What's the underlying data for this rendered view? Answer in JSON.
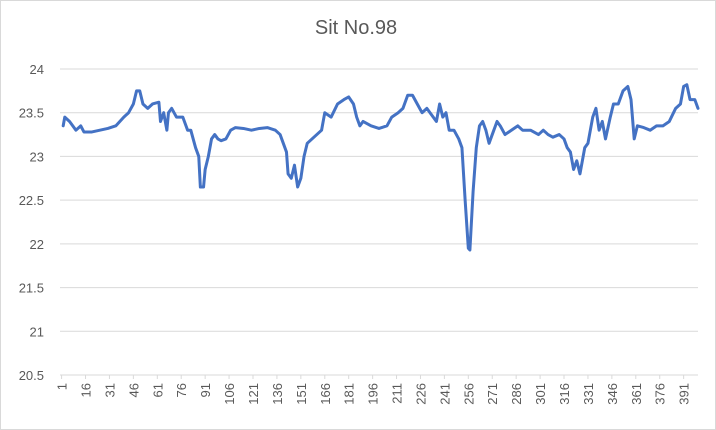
{
  "chart_data": {
    "type": "line",
    "title": "Sit No.98",
    "x": [
      2,
      3,
      6,
      10,
      13,
      15,
      20,
      25,
      30,
      35,
      40,
      43,
      46,
      48,
      50,
      52,
      55,
      58,
      62,
      63,
      65,
      67,
      68,
      70,
      73,
      77,
      80,
      82,
      85,
      87,
      88,
      90,
      91,
      93,
      95,
      97,
      99,
      101,
      104,
      107,
      110,
      115,
      120,
      125,
      130,
      135,
      138,
      140,
      142,
      143,
      145,
      147,
      149,
      151,
      153,
      155,
      158,
      161,
      164,
      166,
      170,
      174,
      178,
      181,
      184,
      186,
      188,
      190,
      195,
      200,
      205,
      208,
      212,
      215,
      218,
      221,
      224,
      227,
      230,
      234,
      236,
      238,
      240,
      242,
      244,
      247,
      250,
      252,
      254,
      256,
      257,
      259,
      261,
      263,
      265,
      267,
      269,
      272,
      274,
      276,
      279,
      283,
      287,
      290,
      295,
      300,
      303,
      306,
      309,
      313,
      316,
      318,
      320,
      322,
      324,
      326,
      329,
      331,
      334,
      336,
      338,
      340,
      342,
      345,
      347,
      350,
      353,
      356,
      358,
      360,
      362,
      366,
      370,
      374,
      378,
      382,
      386,
      389,
      391,
      393,
      395,
      398,
      400
    ],
    "series": [
      {
        "color": "#4472c4",
        "values": [
          23.35,
          23.45,
          23.4,
          23.3,
          23.35,
          23.28,
          23.28,
          23.3,
          23.32,
          23.35,
          23.45,
          23.5,
          23.6,
          23.75,
          23.75,
          23.6,
          23.55,
          23.6,
          23.62,
          23.4,
          23.5,
          23.3,
          23.5,
          23.55,
          23.45,
          23.45,
          23.3,
          23.3,
          23.1,
          23.0,
          22.65,
          22.65,
          22.85,
          23.0,
          23.2,
          23.25,
          23.2,
          23.18,
          23.2,
          23.3,
          23.33,
          23.32,
          23.3,
          23.32,
          23.33,
          23.3,
          23.25,
          23.15,
          23.05,
          22.8,
          22.75,
          22.9,
          22.65,
          22.75,
          23.0,
          23.15,
          23.2,
          23.25,
          23.3,
          23.5,
          23.45,
          23.6,
          23.65,
          23.68,
          23.6,
          23.45,
          23.35,
          23.4,
          23.35,
          23.32,
          23.35,
          23.45,
          23.5,
          23.55,
          23.7,
          23.7,
          23.6,
          23.5,
          23.55,
          23.45,
          23.4,
          23.6,
          23.45,
          23.5,
          23.3,
          23.3,
          23.2,
          23.1,
          22.5,
          21.95,
          21.93,
          22.6,
          23.1,
          23.35,
          23.4,
          23.3,
          23.15,
          23.3,
          23.4,
          23.35,
          23.25,
          23.3,
          23.35,
          23.3,
          23.3,
          23.25,
          23.3,
          23.25,
          23.22,
          23.25,
          23.2,
          23.1,
          23.05,
          22.85,
          22.95,
          22.8,
          23.1,
          23.15,
          23.45,
          23.55,
          23.3,
          23.4,
          23.2,
          23.45,
          23.6,
          23.6,
          23.75,
          23.8,
          23.65,
          23.2,
          23.35,
          23.33,
          23.3,
          23.35,
          23.35,
          23.4,
          23.55,
          23.6,
          23.8,
          23.82,
          23.65,
          23.65,
          23.55
        ]
      }
    ],
    "xlim": [
      0,
      400
    ],
    "xticks": [
      1,
      16,
      31,
      46,
      61,
      76,
      91,
      106,
      121,
      136,
      151,
      166,
      181,
      196,
      211,
      226,
      241,
      256,
      271,
      286,
      301,
      316,
      331,
      346,
      361,
      376,
      391
    ],
    "ylim": [
      20.5,
      24
    ],
    "yticks": [
      20.5,
      21,
      21.5,
      22,
      22.5,
      23,
      23.5,
      24
    ],
    "grid": true
  }
}
